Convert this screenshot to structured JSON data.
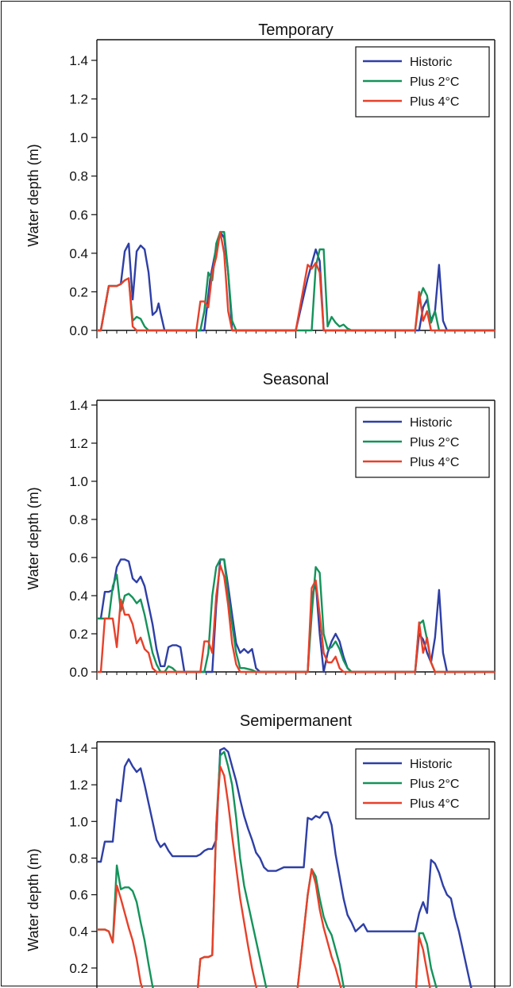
{
  "colors": {
    "historic": "#2e3fa6",
    "plus2": "#14935a",
    "plus4": "#e8402a"
  },
  "chart_data": [
    {
      "type": "line",
      "title": "Temporary",
      "ylabel": "Water depth (m)",
      "ylim": [
        0,
        1.4
      ],
      "yticks": [
        "0.0",
        "0.2",
        "0.4",
        "0.6",
        "0.8",
        "1.0",
        "1.2",
        "1.4"
      ],
      "xlim": [
        0,
        200
      ],
      "grid": false,
      "legend_position": "top-right",
      "series": [
        {
          "name": "Historic",
          "color": "#2e3fa6",
          "x": [
            0,
            2,
            6,
            10,
            12,
            14,
            16,
            18,
            20,
            22,
            24,
            26,
            28,
            30,
            31,
            32,
            34,
            36,
            38,
            40,
            42,
            50,
            54,
            57,
            60,
            62,
            64,
            66,
            68,
            70,
            80,
            100,
            106,
            110,
            112,
            114,
            115,
            116,
            118,
            120,
            126,
            162,
            164,
            166,
            168,
            170,
            172,
            174,
            176,
            180,
            200
          ],
          "y": [
            0,
            0,
            0.23,
            0.23,
            0.24,
            0.41,
            0.45,
            0.16,
            0.41,
            0.44,
            0.42,
            0.3,
            0.08,
            0.1,
            0.14,
            0.09,
            0,
            0,
            0,
            0,
            0,
            0,
            0,
            0.27,
            0.43,
            0.51,
            0.48,
            0.3,
            0,
            0,
            0,
            0,
            0.27,
            0.42,
            0.36,
            0,
            0,
            0,
            0,
            0,
            0,
            0,
            0.12,
            0.16,
            0.05,
            0.1,
            0.34,
            0.05,
            0,
            0,
            0
          ]
        },
        {
          "name": "Plus 2°C",
          "color": "#14935a",
          "x": [
            0,
            2,
            6,
            10,
            12,
            14,
            16,
            18,
            20,
            22,
            24,
            26,
            28,
            40,
            50,
            52,
            54,
            56,
            58,
            60,
            62,
            64,
            66,
            68,
            70,
            100,
            108,
            110,
            112,
            114,
            116,
            118,
            120,
            122,
            124,
            126,
            128,
            160,
            162,
            164,
            166,
            168,
            170,
            172,
            200
          ],
          "y": [
            0,
            0,
            0.23,
            0.23,
            0.24,
            0.26,
            0.27,
            0.05,
            0.07,
            0.06,
            0.02,
            0,
            0,
            0,
            0,
            0,
            0.1,
            0.3,
            0.26,
            0.45,
            0.51,
            0.51,
            0.3,
            0.05,
            0,
            0,
            0,
            0.33,
            0.42,
            0.42,
            0.02,
            0.07,
            0.04,
            0.02,
            0.03,
            0.01,
            0,
            0,
            0.16,
            0.22,
            0.18,
            0.04,
            0.1,
            0,
            0
          ]
        },
        {
          "name": "Plus 4°C",
          "color": "#e8402a",
          "x": [
            0,
            2,
            6,
            10,
            12,
            14,
            16,
            18,
            20,
            22,
            40,
            50,
            52,
            54,
            56,
            58,
            60,
            62,
            64,
            66,
            68,
            70,
            100,
            106,
            108,
            110,
            112,
            114,
            116,
            120,
            160,
            162,
            164,
            166,
            168,
            170,
            200
          ],
          "y": [
            0,
            0,
            0.23,
            0.23,
            0.24,
            0.26,
            0.27,
            0.02,
            0,
            0,
            0,
            0,
            0.15,
            0.15,
            0.12,
            0.3,
            0.38,
            0.51,
            0.4,
            0.1,
            0,
            0,
            0,
            0.34,
            0.32,
            0.35,
            0.3,
            0,
            0,
            0,
            0,
            0.2,
            0.05,
            0.1,
            0,
            0,
            0
          ]
        }
      ],
      "legend": [
        "Historic",
        "Plus 2°C",
        "Plus 4°C"
      ]
    },
    {
      "type": "line",
      "title": "Seasonal",
      "ylabel": "Water depth (m)",
      "ylim": [
        0,
        1.4
      ],
      "yticks": [
        "0.0",
        "0.2",
        "0.4",
        "0.6",
        "0.8",
        "1.0",
        "1.2",
        "1.4"
      ],
      "xlim": [
        0,
        200
      ],
      "grid": false,
      "legend_position": "top-right",
      "series": [
        {
          "name": "Historic",
          "color": "#2e3fa6",
          "x": [
            0,
            2,
            4,
            6,
            8,
            10,
            12,
            14,
            16,
            18,
            20,
            22,
            24,
            26,
            28,
            30,
            32,
            34,
            36,
            38,
            40,
            42,
            44,
            46,
            48,
            50,
            52,
            54,
            56,
            58,
            60,
            62,
            64,
            66,
            68,
            70,
            72,
            74,
            76,
            78,
            80,
            82,
            84,
            100,
            106,
            108,
            110,
            112,
            114,
            116,
            118,
            120,
            122,
            124,
            126,
            128,
            160,
            162,
            164,
            166,
            168,
            170,
            172,
            174,
            176,
            200
          ],
          "y": [
            0.28,
            0.28,
            0.42,
            0.42,
            0.43,
            0.55,
            0.59,
            0.59,
            0.58,
            0.49,
            0.47,
            0.5,
            0.45,
            0.35,
            0.25,
            0.12,
            0.03,
            0.03,
            0.13,
            0.14,
            0.14,
            0.13,
            0,
            0,
            0,
            0,
            0,
            0,
            0,
            0,
            0.35,
            0.59,
            0.59,
            0.45,
            0.3,
            0.15,
            0.1,
            0.12,
            0.1,
            0.12,
            0.02,
            0,
            0,
            0,
            0,
            0.38,
            0.47,
            0.2,
            0,
            0.1,
            0.16,
            0.2,
            0.16,
            0.08,
            0.02,
            0,
            0,
            0.2,
            0.17,
            0.1,
            0.05,
            0.18,
            0.43,
            0.1,
            0,
            0
          ]
        },
        {
          "name": "Plus 2°C",
          "color": "#14935a",
          "x": [
            0,
            2,
            4,
            6,
            8,
            10,
            12,
            14,
            16,
            18,
            20,
            22,
            24,
            26,
            28,
            30,
            32,
            34,
            36,
            38,
            40,
            44,
            48,
            52,
            54,
            56,
            58,
            60,
            62,
            64,
            66,
            68,
            70,
            72,
            74,
            78,
            80,
            100,
            106,
            108,
            110,
            112,
            114,
            116,
            118,
            120,
            122,
            124,
            126,
            128,
            160,
            162,
            164,
            166,
            168,
            170,
            172,
            174,
            176,
            200
          ],
          "y": [
            0.28,
            0.28,
            0.28,
            0.28,
            0.45,
            0.51,
            0.32,
            0.4,
            0.41,
            0.39,
            0.36,
            0.38,
            0.3,
            0.2,
            0.1,
            0.04,
            0,
            0,
            0.03,
            0.02,
            0,
            0,
            0,
            0,
            0,
            0.1,
            0.4,
            0.55,
            0.59,
            0.59,
            0.4,
            0.25,
            0.1,
            0.02,
            0.02,
            0.01,
            0,
            0,
            0,
            0.3,
            0.55,
            0.52,
            0.2,
            0.12,
            0.13,
            0.16,
            0.12,
            0.06,
            0.02,
            0,
            0,
            0.25,
            0.27,
            0.17,
            0.05,
            0,
            0,
            0,
            0,
            0
          ]
        },
        {
          "name": "Plus 4°C",
          "color": "#e8402a",
          "x": [
            0,
            2,
            4,
            6,
            8,
            10,
            12,
            14,
            16,
            18,
            20,
            22,
            24,
            26,
            28,
            30,
            32,
            40,
            48,
            52,
            54,
            56,
            58,
            60,
            62,
            64,
            66,
            68,
            70,
            72,
            74,
            100,
            106,
            108,
            110,
            112,
            114,
            116,
            118,
            120,
            122,
            124,
            126,
            160,
            162,
            164,
            166,
            168,
            170,
            172,
            200
          ],
          "y": [
            0,
            0,
            0.28,
            0.28,
            0.28,
            0.13,
            0.38,
            0.3,
            0.3,
            0.25,
            0.15,
            0.18,
            0.12,
            0.1,
            0.02,
            0,
            0,
            0,
            0,
            0,
            0.16,
            0.16,
            0.1,
            0.4,
            0.56,
            0.5,
            0.35,
            0.15,
            0.04,
            0,
            0,
            0,
            0,
            0.44,
            0.48,
            0.3,
            0.1,
            0.05,
            0.05,
            0.08,
            0.02,
            0,
            0,
            0,
            0.26,
            0.1,
            0.18,
            0.05,
            0,
            0,
            0
          ]
        }
      ],
      "legend": [
        "Historic",
        "Plus 2°C",
        "Plus 4°C"
      ]
    },
    {
      "type": "line",
      "title": "Semipermanent",
      "ylabel": "Water depth (m)",
      "ylim": [
        0,
        1.4
      ],
      "yticks": [
        "0.2",
        "0.4",
        "0.6",
        "0.8",
        "1.0",
        "1.2",
        "1.4"
      ],
      "xlim": [
        0,
        200
      ],
      "grid": false,
      "legend_position": "top-right",
      "series": [
        {
          "name": "Historic",
          "color": "#2e3fa6",
          "x": [
            0,
            2,
            4,
            6,
            8,
            10,
            12,
            14,
            16,
            18,
            20,
            22,
            24,
            26,
            28,
            30,
            32,
            34,
            36,
            38,
            40,
            42,
            44,
            46,
            48,
            50,
            52,
            54,
            56,
            58,
            60,
            62,
            64,
            66,
            68,
            70,
            72,
            74,
            76,
            78,
            80,
            82,
            84,
            86,
            88,
            90,
            92,
            94,
            96,
            98,
            100,
            102,
            104,
            106,
            108,
            110,
            112,
            114,
            116,
            118,
            120,
            122,
            124,
            126,
            128,
            130,
            132,
            134,
            136,
            140,
            150,
            160,
            162,
            164,
            166,
            168,
            170,
            172,
            174,
            176,
            178,
            180,
            182,
            184,
            186,
            188,
            190,
            192
          ],
          "y": [
            0.78,
            0.78,
            0.89,
            0.89,
            0.89,
            1.12,
            1.11,
            1.3,
            1.34,
            1.3,
            1.27,
            1.29,
            1.2,
            1.1,
            1.0,
            0.9,
            0.86,
            0.88,
            0.84,
            0.81,
            0.81,
            0.81,
            0.81,
            0.81,
            0.81,
            0.81,
            0.82,
            0.84,
            0.85,
            0.85,
            0.9,
            1.39,
            1.4,
            1.38,
            1.3,
            1.22,
            1.12,
            1.03,
            0.96,
            0.9,
            0.83,
            0.8,
            0.75,
            0.73,
            0.73,
            0.73,
            0.74,
            0.75,
            0.75,
            0.75,
            0.75,
            0.75,
            0.75,
            1.02,
            1.01,
            1.03,
            1.02,
            1.05,
            1.05,
            0.98,
            0.82,
            0.7,
            0.58,
            0.49,
            0.45,
            0.4,
            0.42,
            0.44,
            0.4,
            0.4,
            0.4,
            0.4,
            0.5,
            0.56,
            0.5,
            0.79,
            0.77,
            0.72,
            0.65,
            0.6,
            0.58,
            0.48,
            0.4,
            0.3,
            0.2,
            0.1,
            0.02,
            0
          ]
        },
        {
          "name": "Plus 2°C",
          "color": "#14935a",
          "x": [
            0,
            2,
            4,
            6,
            8,
            10,
            12,
            14,
            16,
            18,
            20,
            22,
            24,
            26,
            28,
            30,
            32,
            50,
            52,
            54,
            56,
            58,
            60,
            62,
            64,
            66,
            68,
            70,
            72,
            74,
            76,
            78,
            80,
            82,
            84,
            86,
            88,
            90,
            100,
            106,
            108,
            110,
            112,
            114,
            116,
            118,
            120,
            122,
            124,
            126,
            128,
            130,
            160,
            162,
            164,
            166,
            168,
            170,
            172,
            174
          ],
          "y": [
            0.41,
            0.41,
            0.41,
            0.4,
            0.34,
            0.76,
            0.63,
            0.64,
            0.64,
            0.62,
            0.56,
            0.45,
            0.35,
            0.22,
            0.1,
            0.02,
            0,
            0,
            0.25,
            0.26,
            0.26,
            0.27,
            0.98,
            1.36,
            1.38,
            1.3,
            1.2,
            1.02,
            0.8,
            0.65,
            0.55,
            0.45,
            0.35,
            0.25,
            0.15,
            0.05,
            0,
            0,
            0,
            0.6,
            0.74,
            0.7,
            0.58,
            0.48,
            0.42,
            0.38,
            0.3,
            0.22,
            0.1,
            0.02,
            0,
            0,
            0,
            0.39,
            0.39,
            0.33,
            0.2,
            0.12,
            0.04,
            0
          ]
        },
        {
          "name": "Plus 4°C",
          "color": "#e8402a",
          "x": [
            0,
            2,
            4,
            6,
            8,
            10,
            12,
            14,
            16,
            18,
            20,
            22,
            24,
            26,
            28,
            50,
            52,
            54,
            56,
            58,
            60,
            62,
            64,
            66,
            68,
            70,
            72,
            74,
            76,
            78,
            80,
            82,
            84,
            100,
            106,
            108,
            110,
            112,
            114,
            116,
            118,
            120,
            122,
            124,
            126,
            160,
            162,
            164,
            166,
            168,
            170
          ],
          "y": [
            0.41,
            0.41,
            0.41,
            0.4,
            0.34,
            0.65,
            0.58,
            0.5,
            0.42,
            0.35,
            0.25,
            0.12,
            0.05,
            0,
            0,
            0,
            0.25,
            0.26,
            0.26,
            0.27,
            0.98,
            1.3,
            1.25,
            1.1,
            0.92,
            0.75,
            0.58,
            0.45,
            0.32,
            0.2,
            0.1,
            0.02,
            0,
            0,
            0.6,
            0.74,
            0.66,
            0.52,
            0.42,
            0.34,
            0.26,
            0.2,
            0.12,
            0.04,
            0,
            0,
            0.37,
            0.3,
            0.18,
            0.06,
            0
          ]
        }
      ],
      "legend": [
        "Historic",
        "Plus 2°C",
        "Plus 4°C"
      ]
    }
  ]
}
